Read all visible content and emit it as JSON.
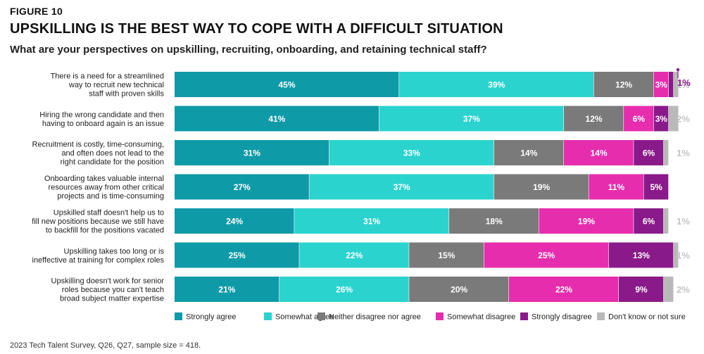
{
  "figure_label": "FIGURE 10",
  "title": "UPSKILLING IS THE BEST WAY TO COPE WITH A DIFFICULT SITUATION",
  "subtitle": "What are your perspectives on upskilling, recruiting, onboarding, and retaining technical staff?",
  "source": "2023 Tech Talent Survey, Q26, Q27, sample size = 418.",
  "chart_data": {
    "type": "bar",
    "orientation": "horizontal",
    "stacked": true,
    "title": "UPSKILLING IS THE BEST WAY TO COPE WITH A DIFFICULT SITUATION",
    "xlabel": "",
    "ylabel": "",
    "xlim": [
      0,
      100
    ],
    "legend_position": "bottom",
    "categories": [
      [
        "There is a need for a streamlined",
        "way to recruit new technical",
        "staff with proven skills"
      ],
      [
        "Hiring the wrong candidate and then",
        "having to onboard again is an issue"
      ],
      [
        "Recruitment is costly, time-consuming,",
        "and often does not lead to the",
        "right candidate for the position"
      ],
      [
        "Onboarding takes valuable internal",
        "resources away from other critical",
        "projects and is time-consuming"
      ],
      [
        "Upskilled staff doesn't help us to",
        "fill new positions because we still have",
        "to backfill for the positions vacated"
      ],
      [
        "Upskilling takes too long or is",
        "ineffective at training for complex roles"
      ],
      [
        "Upskilling doesn't work for senior",
        "roles because you can't teach",
        "broad subject matter expertise"
      ]
    ],
    "series": [
      {
        "name": "Strongly agree",
        "color": "#0f9aa8",
        "values": [
          45,
          41,
          31,
          27,
          24,
          25,
          21
        ]
      },
      {
        "name": "Somewhat agree",
        "color": "#2bd3cf",
        "values": [
          39,
          37,
          33,
          37,
          31,
          22,
          26
        ]
      },
      {
        "name": "Neither disagree nor agree",
        "color": "#7a7a7a",
        "values": [
          12,
          12,
          14,
          19,
          18,
          15,
          20
        ]
      },
      {
        "name": "Somewhat disagree",
        "color": "#e62dae",
        "values": [
          3,
          6,
          14,
          11,
          19,
          25,
          22
        ]
      },
      {
        "name": "Strongly disagree",
        "color": "#8a1a8a",
        "values": [
          1,
          3,
          6,
          5,
          6,
          13,
          9
        ]
      },
      {
        "name": "Don't know or not sure",
        "color": "#b9b9b9",
        "values": [
          1,
          2,
          1,
          0,
          1,
          1,
          2
        ]
      }
    ],
    "outside_labels": [
      "1%",
      "2%",
      "1%",
      "",
      "1%",
      "1%",
      "2%"
    ],
    "callout": {
      "row": 0,
      "series": "Strongly disagree",
      "label": "1%"
    }
  }
}
